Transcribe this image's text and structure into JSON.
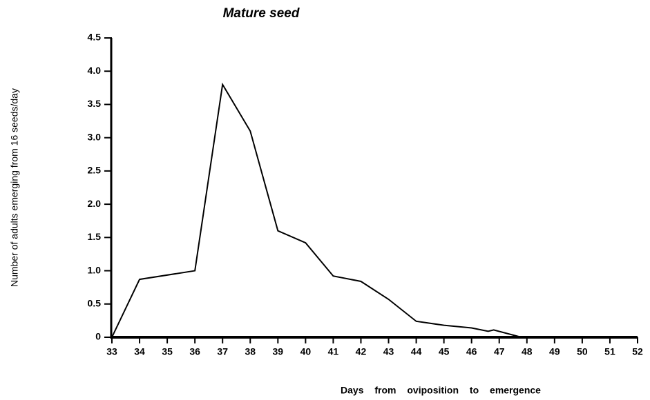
{
  "chart_data": {
    "type": "line",
    "title": "Mature seed",
    "x_label": "Days from oviposition to emergence",
    "y_label": "Number of adults emerging from 16 seeds/day",
    "x": [
      33,
      34,
      36,
      37,
      38,
      39,
      40,
      41,
      42,
      43,
      44,
      45,
      46,
      46.6,
      46.8,
      47.8
    ],
    "series": [
      {
        "name": "Mature seed",
        "color": "#000000",
        "values": [
          0,
          0.87,
          1.0,
          3.8,
          3.1,
          1.6,
          1.42,
          0.92,
          0.84,
          0.57,
          0.24,
          0.18,
          0.14,
          0.09,
          0.11,
          0
        ]
      }
    ],
    "xlim": [
      33,
      52
    ],
    "xticks": [
      33,
      34,
      35,
      36,
      37,
      38,
      39,
      40,
      41,
      42,
      43,
      44,
      45,
      46,
      47,
      48,
      49,
      50,
      51,
      52
    ],
    "ylim": [
      0,
      4.5
    ],
    "yticks": [
      0,
      0.5,
      {
        "value": 1,
        "label": "1.0"
      },
      1.5,
      {
        "value": 2,
        "label": "2.0"
      },
      2.5,
      {
        "value": 3,
        "label": "3.0"
      },
      3.5,
      {
        "value": 4,
        "label": "4.0"
      },
      4.5
    ],
    "grid": false
  }
}
